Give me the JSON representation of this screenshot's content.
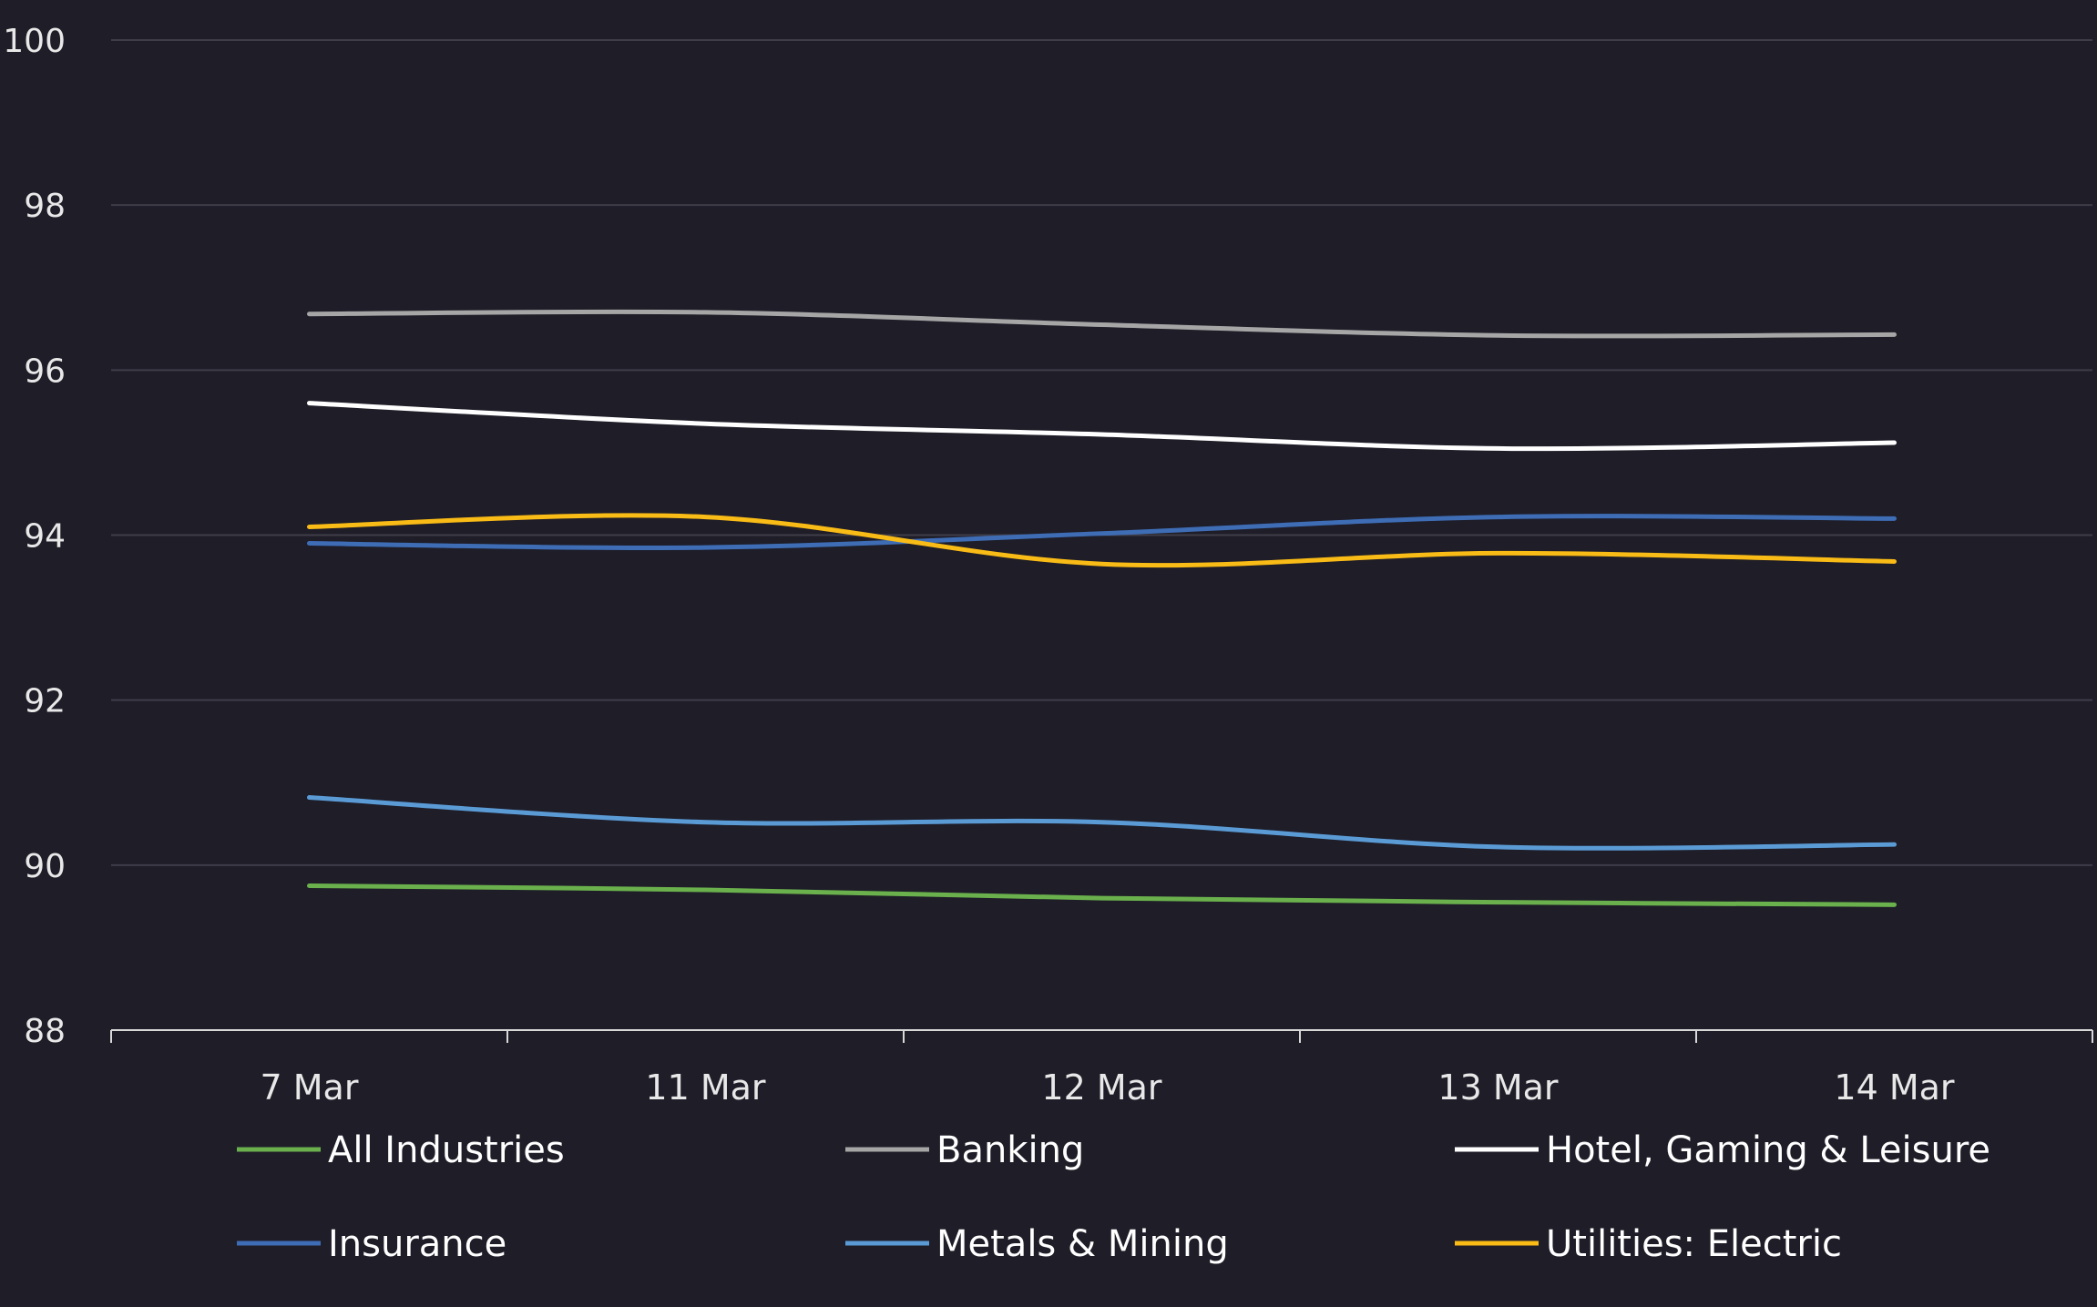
{
  "chart_data": {
    "type": "line",
    "title": "",
    "xlabel": "",
    "ylabel": "",
    "categories": [
      "7 Mar",
      "11 Mar",
      "12 Mar",
      "13 Mar",
      "14 Mar"
    ],
    "ylim": [
      88,
      100
    ],
    "yticks": [
      "88",
      "90",
      "92",
      "94",
      "96",
      "98",
      "100"
    ],
    "grid": true,
    "legend_position": "bottom",
    "series": [
      {
        "name": "All Industries",
        "color": "#6ab04c",
        "values": [
          89.75,
          89.7,
          89.6,
          89.55,
          89.52
        ]
      },
      {
        "name": "Banking",
        "color": "#a6a6a6",
        "values": [
          96.68,
          96.7,
          96.55,
          96.42,
          96.43
        ]
      },
      {
        "name": "Hotel, Gaming & Leisure",
        "color": "#ffffff",
        "values": [
          95.6,
          95.35,
          95.22,
          95.05,
          95.12
        ]
      },
      {
        "name": "Insurance",
        "color": "#3e6db5",
        "values": [
          93.9,
          93.85,
          94.02,
          94.22,
          94.2
        ]
      },
      {
        "name": "Metals & Mining",
        "color": "#5b9bd5",
        "values": [
          90.82,
          90.52,
          90.52,
          90.22,
          90.25
        ]
      },
      {
        "name": "Utilities: Electric",
        "color": "#f9bb16",
        "values": [
          94.1,
          94.22,
          93.65,
          93.78,
          93.68
        ]
      }
    ]
  }
}
